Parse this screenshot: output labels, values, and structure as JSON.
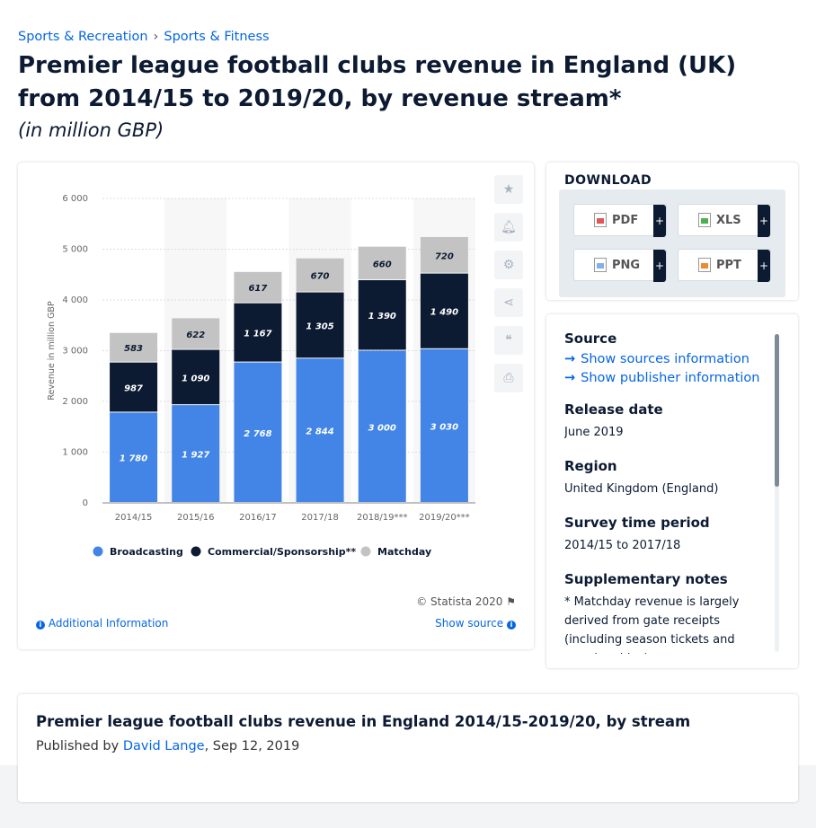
{
  "breadcrumb": {
    "item1": "Sports & Recreation",
    "sep": "›",
    "item2": "Sports & Fitness"
  },
  "page_title": "Premier league football clubs revenue in England (UK) from 2014/15 to 2019/20, by revenue stream*",
  "subtitle": "(in million GBP)",
  "chart_footer": {
    "copyright": "© Statista 2020",
    "additional_info": "Additional Information",
    "show_source": "Show source"
  },
  "download": {
    "title": "DOWNLOAD",
    "buttons": [
      {
        "label": "PDF",
        "plus": "+"
      },
      {
        "label": "XLS",
        "plus": "+"
      },
      {
        "label": "PNG",
        "plus": "+"
      },
      {
        "label": "PPT",
        "plus": "+"
      }
    ]
  },
  "meta": {
    "source_heading": "Source",
    "show_sources": "Show sources information",
    "show_publisher": "Show publisher information",
    "release_heading": "Release date",
    "release_value": "June 2019",
    "region_heading": "Region",
    "region_value": "United Kingdom (England)",
    "survey_heading": "Survey time period",
    "survey_value": "2014/15 to 2017/18",
    "notes_heading": "Supplementary notes",
    "notes_value": "* Matchday revenue is largely derived from gate receipts (including season tickets and memberships)."
  },
  "publication": {
    "title": "Premier league football clubs revenue in England 2014/15-2019/20, by stream",
    "published_by": "Published by",
    "author": "David Lange",
    "date": ", Sep 12, 2019"
  },
  "colors": {
    "broadcasting": "#4285e6",
    "commercial": "#0c1a32",
    "matchday": "#c3c3c3",
    "link": "#0666e5"
  },
  "chart_data": {
    "type": "bar",
    "stacked": true,
    "categories": [
      "2014/15",
      "2015/16",
      "2016/17",
      "2017/18",
      "2018/19***",
      "2019/20***"
    ],
    "series": [
      {
        "name": "Broadcasting",
        "values": [
          1780,
          1927,
          2768,
          2844,
          3000,
          3030
        ],
        "labels": [
          "1 780",
          "1 927",
          "2 768",
          "2 844",
          "3 000",
          "3 030"
        ]
      },
      {
        "name": "Commercial/Sponsorship**",
        "values": [
          987,
          1090,
          1167,
          1305,
          1390,
          1490
        ],
        "labels": [
          "987",
          "1 090",
          "1 167",
          "1 305",
          "1 390",
          "1 490"
        ]
      },
      {
        "name": "Matchday",
        "values": [
          583,
          622,
          617,
          670,
          660,
          720
        ],
        "labels": [
          "583",
          "622",
          "617",
          "670",
          "660",
          "720"
        ]
      }
    ],
    "ylabel": "Revenue in million GBP",
    "ylim": [
      0,
      6000
    ],
    "yticks": [
      0,
      1000,
      2000,
      3000,
      4000,
      5000,
      6000
    ],
    "ytick_labels": [
      "0",
      "1 000",
      "2 000",
      "3 000",
      "4 000",
      "5 000",
      "6 000"
    ],
    "grid": true,
    "legend_position": "bottom"
  }
}
